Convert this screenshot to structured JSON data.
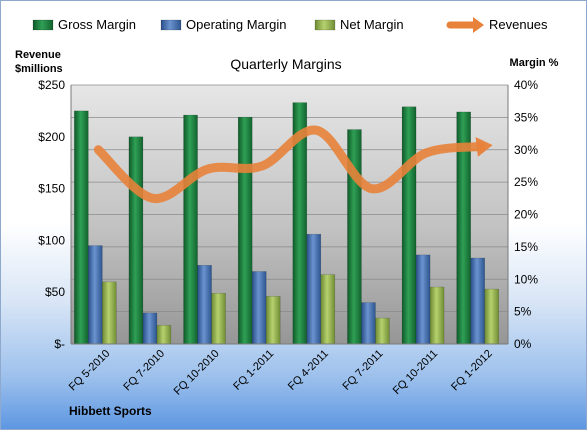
{
  "chart_data": {
    "type": "bar",
    "title": "Quarterly Margins",
    "left_axis_label": [
      "Revenue",
      "$millions"
    ],
    "right_axis_label": "Margin %",
    "footer": "Hibbett Sports",
    "categories": [
      "FQ 5-2010",
      "FQ 7-2010",
      "FQ 10-2010",
      "FQ 1-2011",
      "FQ 4-2011",
      "FQ 7-2011",
      "FQ 10-2011",
      "FQ 1-2012"
    ],
    "left_ticks": [
      "$-",
      "$50",
      "$100",
      "$150",
      "$200",
      "$250"
    ],
    "right_ticks": [
      "0%",
      "5%",
      "10%",
      "15%",
      "20%",
      "25%",
      "30%",
      "35%",
      "40%"
    ],
    "left_ylim": [
      0,
      250
    ],
    "right_ylim": [
      0,
      40
    ],
    "series": [
      {
        "name": "Gross Margin",
        "axis": "left",
        "color": "#1e7a3c",
        "values": [
          225,
          200,
          221,
          219,
          233,
          207,
          229,
          224
        ]
      },
      {
        "name": "Operating Margin",
        "axis": "left",
        "color": "#3f6eb3",
        "values": [
          95,
          30,
          76,
          70,
          106,
          40,
          86,
          83
        ]
      },
      {
        "name": "Net Margin",
        "axis": "left",
        "color": "#94b454",
        "values": [
          60,
          18,
          49,
          46,
          67,
          25,
          55,
          53
        ]
      },
      {
        "name": "Revenues",
        "axis": "right",
        "type": "line",
        "color": "#e8823a",
        "values": [
          30,
          22.5,
          27,
          27.5,
          33,
          24,
          29.5,
          30.5
        ]
      }
    ],
    "legend_position": "top",
    "grid": true
  }
}
